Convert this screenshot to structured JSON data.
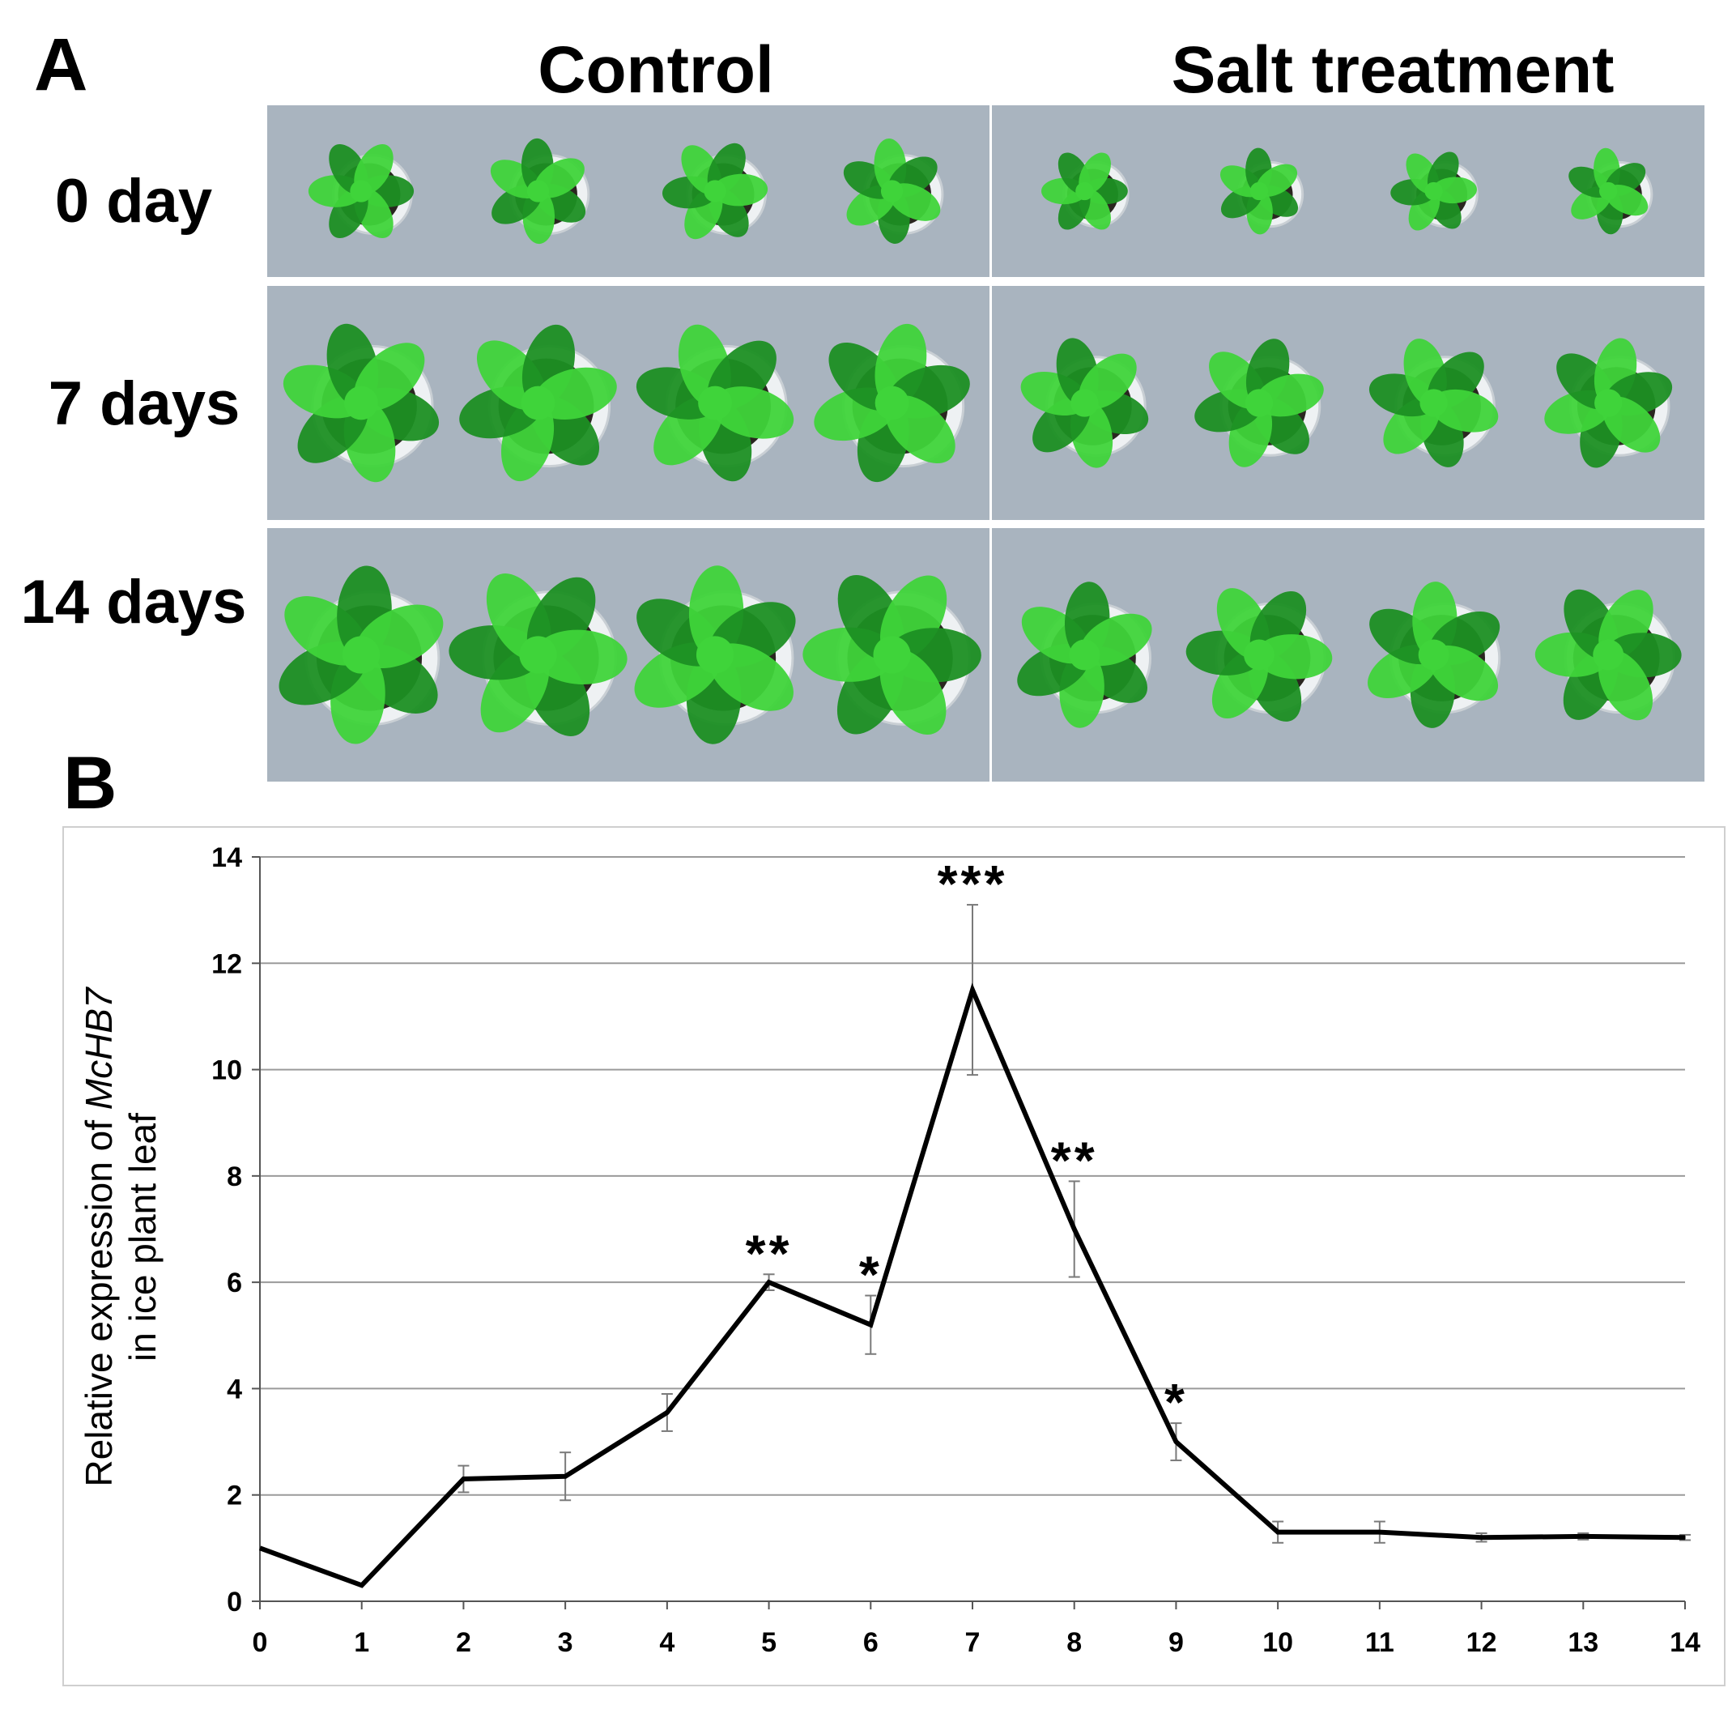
{
  "panel_a": {
    "letter": "A",
    "columns": [
      "Control",
      "Salt treatment"
    ],
    "rows": [
      "0 day",
      "7 days",
      "14 days"
    ],
    "colors": {
      "plant": "#3fd43a",
      "plant_dark": "#1c8f23",
      "soil": "#2a2620",
      "pot": "#eef1f3",
      "ground": "#a9b4bf"
    }
  },
  "panel_b": {
    "letter": "B"
  },
  "chart_data": {
    "type": "line",
    "title": "",
    "xlabel": "",
    "ylabel_line1": "Relative expression of McHB7",
    "ylabel_line1_plain": "Relative expression of ",
    "ylabel_line1_italic": "McHB7",
    "ylabel_line2": "in ice plant leaf",
    "x": [
      0,
      1,
      2,
      3,
      4,
      5,
      6,
      7,
      8,
      9,
      10,
      11,
      12,
      13,
      14
    ],
    "xticks": [
      "0",
      "1",
      "2",
      "3",
      "4",
      "5",
      "6",
      "7",
      "8",
      "9",
      "10",
      "11",
      "12",
      "13",
      "14"
    ],
    "yticks": [
      "0",
      "2",
      "4",
      "6",
      "8",
      "10",
      "12",
      "14"
    ],
    "ylim": [
      0,
      14
    ],
    "grid": true,
    "series": [
      {
        "values": [
          1.0,
          0.3,
          2.3,
          2.35,
          3.55,
          6.0,
          5.2,
          11.5,
          7.0,
          3.0,
          1.3,
          1.3,
          1.2,
          1.22,
          1.2
        ],
        "errors": [
          0,
          0,
          0.25,
          0.45,
          0.35,
          0.15,
          0.55,
          1.6,
          0.9,
          0.35,
          0.2,
          0.2,
          0.08,
          0.06,
          0.05
        ],
        "color": "#000000"
      }
    ],
    "annotations": [
      {
        "x": 5,
        "text": "**"
      },
      {
        "x": 6,
        "text": "*"
      },
      {
        "x": 7,
        "text": "***"
      },
      {
        "x": 8,
        "text": "**"
      },
      {
        "x": 9,
        "text": "*"
      }
    ]
  }
}
